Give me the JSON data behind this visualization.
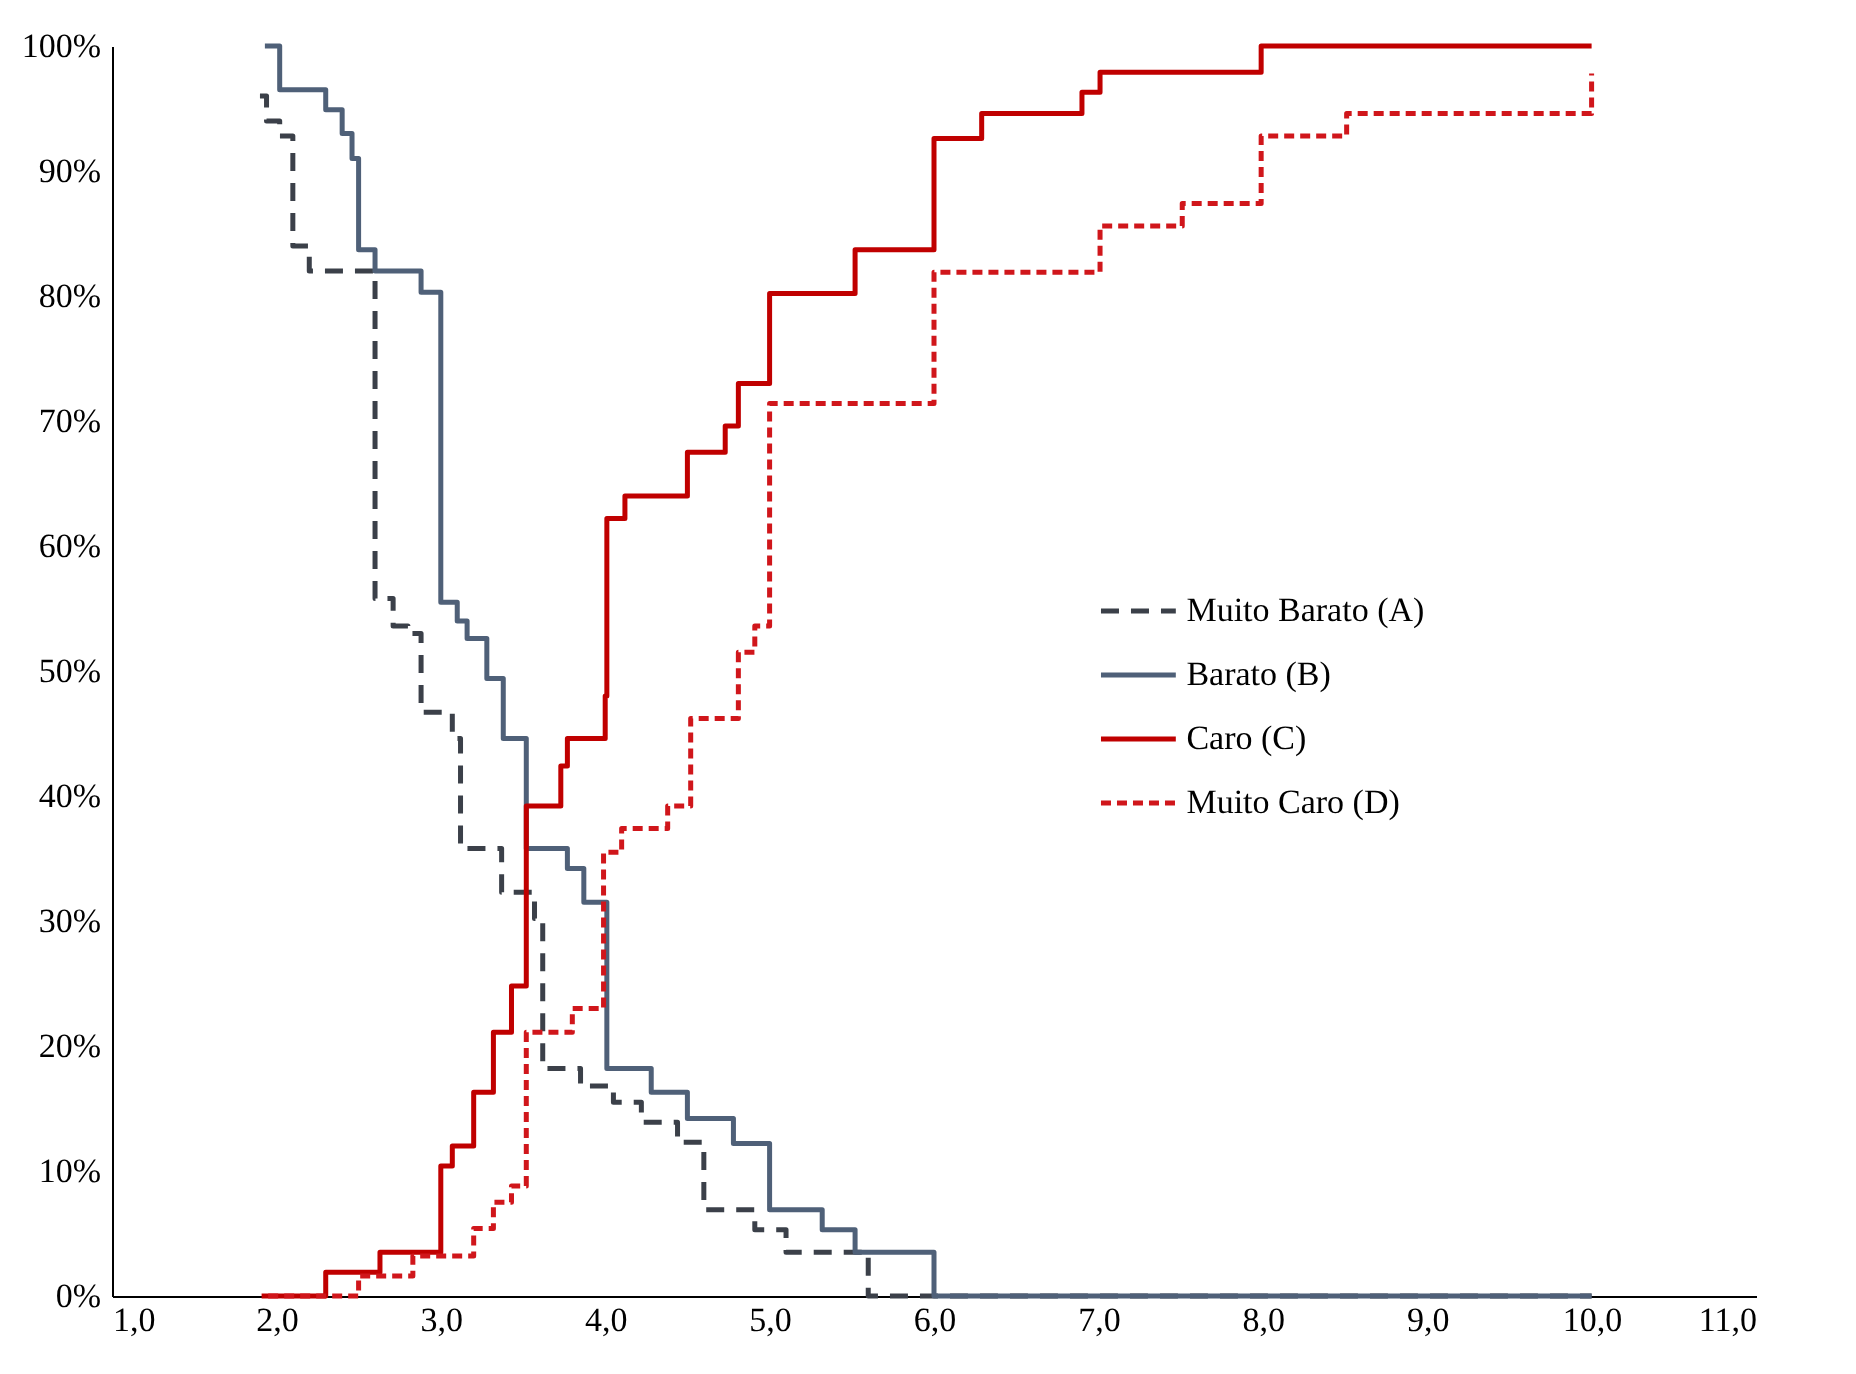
{
  "chart_data": {
    "type": "step",
    "xlim": [
      1,
      11
    ],
    "ylim": [
      0,
      100
    ],
    "xticks": [
      {
        "value": 1,
        "label": "1,0"
      },
      {
        "value": 2,
        "label": "2,0"
      },
      {
        "value": 3,
        "label": "3,0"
      },
      {
        "value": 4,
        "label": "4,0"
      },
      {
        "value": 5,
        "label": "5,0"
      },
      {
        "value": 6,
        "label": "6,0"
      },
      {
        "value": 7,
        "label": "7,0"
      },
      {
        "value": 8,
        "label": "8,0"
      },
      {
        "value": 9,
        "label": "9,0"
      },
      {
        "value": 10,
        "label": "10,0"
      },
      {
        "value": 11,
        "label": "11,0"
      }
    ],
    "yticks": [
      {
        "value": 0,
        "label": "0%"
      },
      {
        "value": 10,
        "label": "10%"
      },
      {
        "value": 20,
        "label": "20%"
      },
      {
        "value": 30,
        "label": "30%"
      },
      {
        "value": 40,
        "label": "40%"
      },
      {
        "value": 50,
        "label": "50%"
      },
      {
        "value": 60,
        "label": "60%"
      },
      {
        "value": 70,
        "label": "70%"
      },
      {
        "value": 80,
        "label": "80%"
      },
      {
        "value": 90,
        "label": "90%"
      },
      {
        "value": 100,
        "label": "100%"
      }
    ],
    "grid": false,
    "legend": "right",
    "series": [
      {
        "name": "Muito Barato (A)",
        "color": "#3b4049",
        "line_style": "dashed",
        "x": [
          1.9,
          1.94,
          2.02,
          2.1,
          2.2,
          2.6,
          2.71,
          2.8,
          2.88,
          3.07,
          3.12,
          3.37,
          3.57,
          3.62,
          3.85,
          4.05,
          4.22,
          4.44,
          4.6,
          4.91,
          5.1,
          5.6,
          10
        ],
        "values": [
          96,
          94,
          92.8,
          84,
          82,
          55.8,
          53.6,
          53,
          46.7,
          44.6,
          35.8,
          32.3,
          30.2,
          18.2,
          16.8,
          15.5,
          13.9,
          12.3,
          6.9,
          5.3,
          3.5,
          0,
          0
        ]
      },
      {
        "name": "Barato (B)",
        "color": "#4f6078",
        "line_style": "solid",
        "x": [
          1.93,
          2.02,
          2.3,
          2.4,
          2.46,
          2.5,
          2.6,
          2.88,
          3.0,
          3.1,
          3.16,
          3.28,
          3.38,
          3.52,
          3.77,
          3.87,
          4.01,
          4.28,
          4.5,
          4.78,
          5.0,
          5.32,
          5.52,
          6.0,
          10
        ],
        "values": [
          100,
          96.5,
          94.9,
          93,
          91,
          83.7,
          82,
          80.3,
          55.5,
          54,
          52.6,
          49.4,
          44.6,
          35.8,
          34.2,
          31.5,
          18.2,
          16.3,
          14.2,
          12.2,
          6.9,
          5.3,
          3.5,
          0,
          0
        ]
      },
      {
        "name": "Caro (C)",
        "color": "#c00000",
        "line_style": "solid",
        "x": [
          1.91,
          2.3,
          2.63,
          3.0,
          3.07,
          3.2,
          3.32,
          3.43,
          3.52,
          3.73,
          3.77,
          4.0,
          4.01,
          4.12,
          4.5,
          4.73,
          4.81,
          5.0,
          5.52,
          6.0,
          6.29,
          6.9,
          7.01,
          7.99,
          10
        ],
        "values": [
          0,
          1.9,
          3.5,
          10.4,
          12,
          16.3,
          21.1,
          24.8,
          39.2,
          42.4,
          44.6,
          48,
          62.2,
          64,
          67.5,
          69.6,
          73,
          80.2,
          83.7,
          92.6,
          94.6,
          96.3,
          97.9,
          100,
          100
        ]
      },
      {
        "name": "Muito Caro (D)",
        "color": "#d0161b",
        "line_style": "dotted",
        "x": [
          1.95,
          2.5,
          2.83,
          3.2,
          3.32,
          3.43,
          3.52,
          3.8,
          3.99,
          4.1,
          4.38,
          4.52,
          4.81,
          4.91,
          5.0,
          6.0,
          7.01,
          7.51,
          7.99,
          8.51,
          10
        ],
        "values": [
          0,
          1.6,
          3.2,
          5.4,
          7.5,
          8.8,
          21.1,
          23,
          35.5,
          37.4,
          39.2,
          46.2,
          51.5,
          53.6,
          71.4,
          81.9,
          85.6,
          87.4,
          92.8,
          94.6,
          97.8
        ]
      }
    ]
  }
}
